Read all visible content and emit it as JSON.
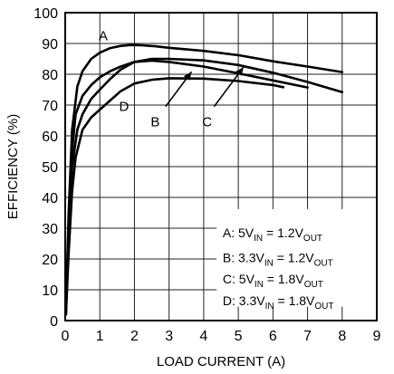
{
  "chart_data": {
    "type": "line",
    "xlabel": "LOAD CURRENT (A)",
    "ylabel": "EFFICIENCY (%)",
    "xlim": [
      0,
      9
    ],
    "ylim": [
      0,
      100
    ],
    "x_ticks": [
      0,
      1,
      2,
      3,
      4,
      5,
      6,
      7,
      8,
      9
    ],
    "y_ticks": [
      0,
      10,
      20,
      30,
      40,
      50,
      60,
      70,
      80,
      90,
      100
    ],
    "grid": true,
    "legend_position": "bottom-right",
    "series": [
      {
        "name": "A",
        "x": [
          0.02,
          0.1,
          0.2,
          0.35,
          0.5,
          0.75,
          1.0,
          1.3,
          1.6,
          1.9,
          2.2,
          2.6,
          3.0,
          4.0,
          5.0,
          6.0,
          7.0,
          8.0
        ],
        "y": [
          3,
          35,
          62,
          76,
          81,
          85,
          87,
          88.5,
          89.2,
          89.5,
          89.4,
          89.1,
          88.6,
          87.6,
          86.2,
          84.2,
          82.5,
          80.7
        ]
      },
      {
        "name": "B",
        "x": [
          0.02,
          0.1,
          0.2,
          0.3,
          0.5,
          0.75,
          1.0,
          1.3,
          1.6,
          2.0,
          2.5,
          3.0,
          4.0,
          5.0,
          6.0,
          7.0
        ],
        "y": [
          2,
          30,
          55,
          67,
          73,
          76.5,
          79,
          81,
          82.5,
          84,
          84.4,
          84,
          82.5,
          80.3,
          78,
          75.7
        ]
      },
      {
        "name": "C",
        "x": [
          0.02,
          0.1,
          0.2,
          0.35,
          0.5,
          0.75,
          1.0,
          1.3,
          1.6,
          2.0,
          2.5,
          3.0,
          4.0,
          5.0,
          6.0,
          7.0,
          8.0
        ],
        "y": [
          2,
          28,
          50,
          62,
          67,
          72,
          75,
          78.5,
          81.5,
          84,
          85,
          85,
          84.5,
          83,
          80.5,
          77.5,
          74.2
        ]
      },
      {
        "name": "D",
        "x": [
          0.02,
          0.1,
          0.2,
          0.3,
          0.5,
          0.75,
          1.0,
          1.3,
          1.6,
          2.0,
          2.5,
          3.0,
          4.0,
          5.0,
          6.0,
          6.3
        ],
        "y": [
          2,
          22,
          42,
          53,
          62,
          66,
          68.5,
          71.5,
          74.5,
          77,
          78.2,
          78.7,
          78.6,
          77.8,
          76.5,
          75.8
        ]
      }
    ],
    "curve_tags": [
      {
        "name": "A",
        "text": "A"
      },
      {
        "name": "B",
        "text": "B"
      },
      {
        "name": "C",
        "text": "C"
      },
      {
        "name": "D",
        "text": "D"
      }
    ],
    "legend": [
      {
        "prefix": "A: 5V",
        "sub1": "IN",
        "mid": " = 1.2V",
        "sub2": "OUT"
      },
      {
        "prefix": "B: 3.3V",
        "sub1": "IN",
        "mid": " = 1.2V",
        "sub2": "OUT"
      },
      {
        "prefix": "C: 5V",
        "sub1": "IN",
        "mid": " = 1.8V",
        "sub2": "OUT"
      },
      {
        "prefix": "D: 3.3V",
        "sub1": "IN",
        "mid": " = 1.8V",
        "sub2": "OUT"
      }
    ]
  }
}
